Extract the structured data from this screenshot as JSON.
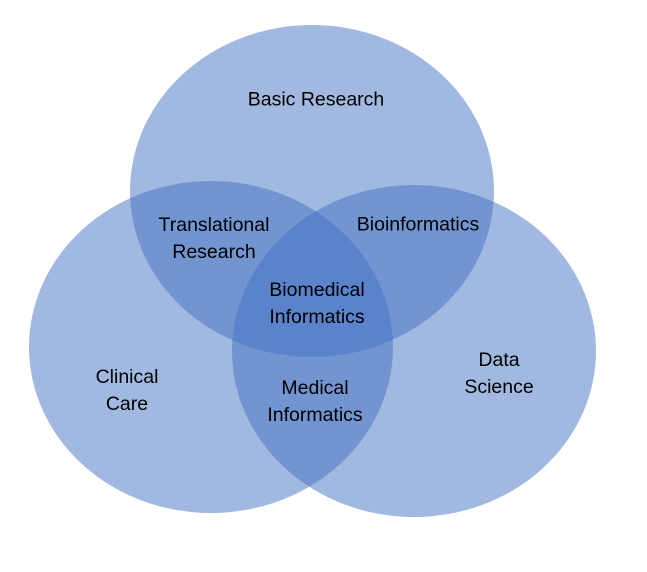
{
  "diagram": {
    "circles": [
      {
        "name": "Basic Research",
        "color": "#4472c4"
      },
      {
        "name": "Clinical Care",
        "color": "#4472c4"
      },
      {
        "name": "Data Science",
        "color": "#4472c4"
      }
    ],
    "labels": {
      "basic_research": [
        "Basic Research"
      ],
      "translational_research": [
        "Translational",
        "Research"
      ],
      "bioinformatics": [
        "Bioinformatics"
      ],
      "biomedical_informatics": [
        "Biomedical",
        "Informatics"
      ],
      "clinical_care": [
        "Clinical",
        "Care"
      ],
      "medical_informatics": [
        "Medical",
        "Informatics"
      ],
      "data_science": [
        "Data",
        "Science"
      ]
    }
  }
}
